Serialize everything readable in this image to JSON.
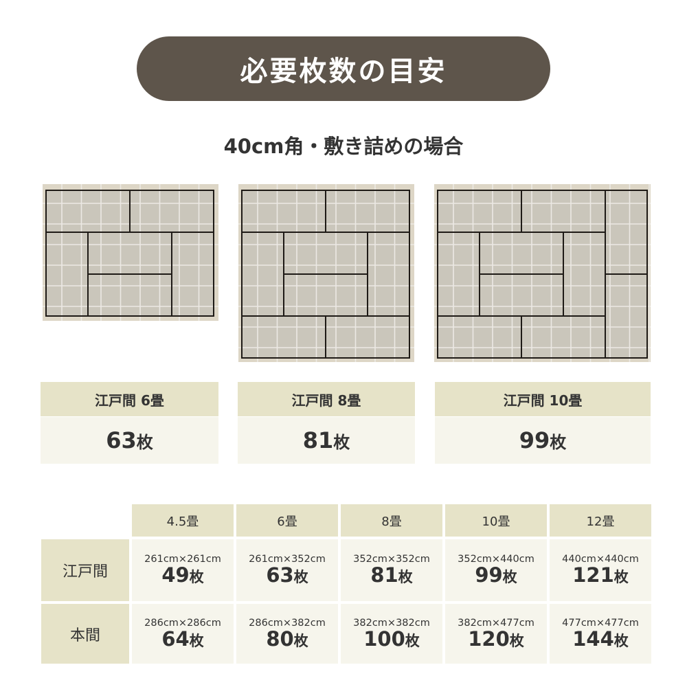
{
  "title": "必要枚数の目安",
  "subtitle": "40cm角・敷き詰めの場合",
  "colors": {
    "pill": "#5e554b",
    "tatami": "#cac6bb",
    "border": "#ddd6c6",
    "header_cell": "#e6e3c8",
    "body_cell": "#f6f5ec"
  },
  "plans": [
    {
      "label": "江戸間 6畳",
      "count": "63",
      "unit": "枚"
    },
    {
      "label": "江戸間 8畳",
      "count": "81",
      "unit": "枚"
    },
    {
      "label": "江戸間 10畳",
      "count": "99",
      "unit": "枚"
    }
  ],
  "table": {
    "columns": [
      "4.5畳",
      "6畳",
      "8畳",
      "10畳",
      "12畳"
    ],
    "rows": [
      {
        "label": "江戸間",
        "cells": [
          {
            "dim": "261cm×261cm",
            "count": "49",
            "unit": "枚"
          },
          {
            "dim": "261cm×352cm",
            "count": "63",
            "unit": "枚"
          },
          {
            "dim": "352cm×352cm",
            "count": "81",
            "unit": "枚"
          },
          {
            "dim": "352cm×440cm",
            "count": "99",
            "unit": "枚"
          },
          {
            "dim": "440cm×440cm",
            "count": "121",
            "unit": "枚"
          }
        ]
      },
      {
        "label": "本間",
        "cells": [
          {
            "dim": "286cm×286cm",
            "count": "64",
            "unit": "枚"
          },
          {
            "dim": "286cm×382cm",
            "count": "80",
            "unit": "枚"
          },
          {
            "dim": "382cm×382cm",
            "count": "100",
            "unit": "枚"
          },
          {
            "dim": "382cm×477cm",
            "count": "120",
            "unit": "枚"
          },
          {
            "dim": "477cm×477cm",
            "count": "144",
            "unit": "枚"
          }
        ]
      }
    ]
  }
}
